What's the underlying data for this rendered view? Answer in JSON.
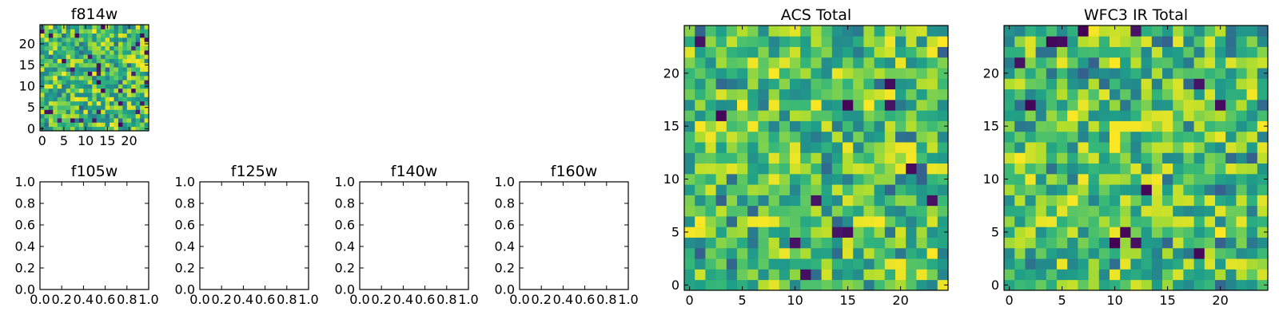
{
  "chart_data": [
    {
      "type": "heatmap",
      "title": "f814w",
      "has_image": true,
      "grid_size": 25,
      "xticks": [
        0,
        5,
        10,
        15,
        20
      ],
      "yticks": [
        0,
        5,
        10,
        15,
        20
      ],
      "xlim": [
        -0.5,
        24.5
      ],
      "ylim": [
        -0.5,
        24.5
      ],
      "colormap": "viridis",
      "seed": 7,
      "low_cells": []
    },
    {
      "type": "heatmap",
      "title": "f105w",
      "has_image": false,
      "xticks": [
        0.0,
        0.2,
        0.4,
        0.6,
        0.8,
        1.0
      ],
      "yticks": [
        0.0,
        0.2,
        0.4,
        0.6,
        0.8,
        1.0
      ],
      "xtick_labels": [
        "0.0",
        "0.2",
        "0.4",
        "0.6",
        "0.8",
        "1.0"
      ],
      "ytick_labels": [
        "0.0",
        "0.2",
        "0.4",
        "0.6",
        "0.8",
        "1.0"
      ],
      "xlim": [
        0,
        1
      ],
      "ylim": [
        0,
        1
      ]
    },
    {
      "type": "heatmap",
      "title": "f125w",
      "has_image": false,
      "xticks": [
        0.0,
        0.2,
        0.4,
        0.6,
        0.8,
        1.0
      ],
      "yticks": [
        0.0,
        0.2,
        0.4,
        0.6,
        0.8,
        1.0
      ],
      "xtick_labels": [
        "0.0",
        "0.2",
        "0.4",
        "0.6",
        "0.8",
        "1.0"
      ],
      "ytick_labels": [
        "0.0",
        "0.2",
        "0.4",
        "0.6",
        "0.8",
        "1.0"
      ],
      "xlim": [
        0,
        1
      ],
      "ylim": [
        0,
        1
      ]
    },
    {
      "type": "heatmap",
      "title": "f140w",
      "has_image": false,
      "xticks": [
        0.0,
        0.2,
        0.4,
        0.6,
        0.8,
        1.0
      ],
      "yticks": [
        0.0,
        0.2,
        0.4,
        0.6,
        0.8,
        1.0
      ],
      "xtick_labels": [
        "0.0",
        "0.2",
        "0.4",
        "0.6",
        "0.8",
        "1.0"
      ],
      "ytick_labels": [
        "0.0",
        "0.2",
        "0.4",
        "0.6",
        "0.8",
        "1.0"
      ],
      "xlim": [
        0,
        1
      ],
      "ylim": [
        0,
        1
      ]
    },
    {
      "type": "heatmap",
      "title": "f160w",
      "has_image": false,
      "xticks": [
        0.0,
        0.2,
        0.4,
        0.6,
        0.8,
        1.0
      ],
      "yticks": [
        0.0,
        0.2,
        0.4,
        0.6,
        0.8,
        1.0
      ],
      "xtick_labels": [
        "0.0",
        "0.2",
        "0.4",
        "0.6",
        "0.8",
        "1.0"
      ],
      "ytick_labels": [
        "0.0",
        "0.2",
        "0.4",
        "0.6",
        "0.8",
        "1.0"
      ],
      "xlim": [
        0,
        1
      ],
      "ylim": [
        0,
        1
      ]
    },
    {
      "type": "heatmap",
      "title": "ACS Total",
      "has_image": true,
      "grid_size": 25,
      "xticks": [
        0,
        5,
        10,
        15,
        20
      ],
      "yticks": [
        0,
        5,
        10,
        15,
        20
      ],
      "xlim": [
        -0.5,
        24.5
      ],
      "ylim": [
        -0.5,
        24.5
      ],
      "colormap": "viridis",
      "seed": 21,
      "low_cells": [
        [
          1,
          23
        ],
        [
          11,
          1
        ],
        [
          10,
          4
        ],
        [
          12,
          8
        ],
        [
          23,
          8
        ],
        [
          21,
          11
        ],
        [
          19,
          17
        ],
        [
          19,
          19
        ],
        [
          15,
          17
        ],
        [
          3,
          16
        ],
        [
          15,
          5
        ],
        [
          14,
          5
        ]
      ]
    },
    {
      "type": "heatmap",
      "title": "WFC3 IR Total",
      "has_image": true,
      "grid_size": 25,
      "xticks": [
        0,
        5,
        10,
        15,
        20
      ],
      "yticks": [
        0,
        5,
        10,
        15,
        20
      ],
      "xlim": [
        -0.5,
        24.5
      ],
      "ylim": [
        -0.5,
        24.5
      ],
      "colormap": "viridis",
      "seed": 33,
      "low_cells": [
        [
          4,
          23
        ],
        [
          5,
          23
        ],
        [
          7,
          24
        ],
        [
          12,
          24
        ],
        [
          1,
          21
        ],
        [
          2,
          17
        ],
        [
          18,
          19
        ],
        [
          20,
          17
        ],
        [
          13,
          9
        ],
        [
          18,
          3
        ],
        [
          10,
          4
        ],
        [
          12,
          4
        ],
        [
          11,
          5
        ]
      ]
    }
  ]
}
